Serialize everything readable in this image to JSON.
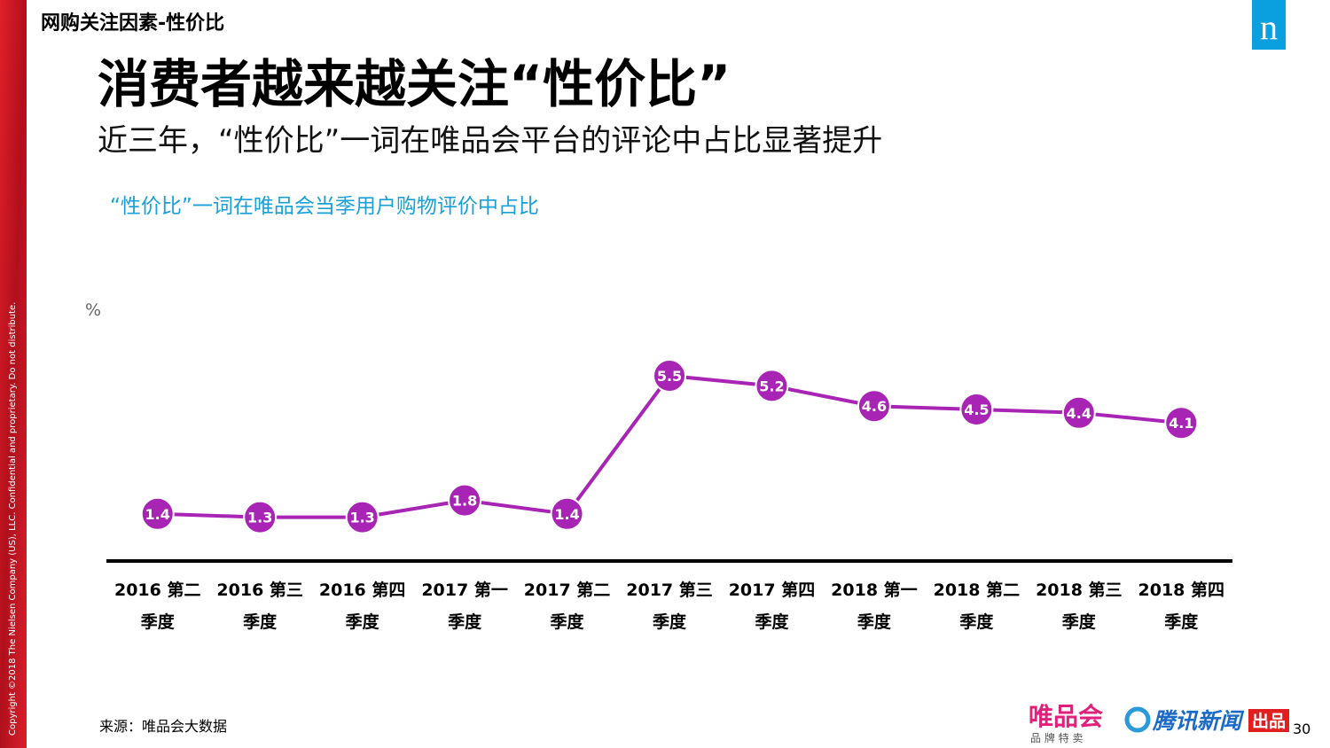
{
  "header": {
    "section": "网购关注因素-性价比",
    "title": "消费者越来越关注“性价比”",
    "subtitle": "近三年，“性价比”一词在唯品会平台的评论中占比显著提升",
    "logo": "n"
  },
  "chart_data": {
    "type": "line",
    "title": "“性价比”一词在唯品会当季用户购物评价中占比",
    "y_label": "%",
    "categories": [
      "2016 第二季度",
      "2016 第三季度",
      "2016 第四季度",
      "2017 第一季度",
      "2017 第二季度",
      "2017 第三季度",
      "2017 第四季度",
      "2018 第一季度",
      "2018 第二季度",
      "2018 第三季度",
      "2018 第四季度"
    ],
    "series": [
      {
        "name": "性价比",
        "color": "#a824b4",
        "values": [
          1.4,
          1.3,
          1.3,
          1.8,
          1.4,
          5.5,
          5.2,
          4.6,
          4.5,
          4.4,
          4.1
        ]
      }
    ],
    "ylim": [
      0,
      7.5
    ]
  },
  "footer": {
    "source": "来源：唯品会大数据",
    "page": "30",
    "copyright": "Copyright ©2018 The Nielsen Company (US), LLC. Confidential and proprietary. Do not distribute.",
    "brand1": "唯品会",
    "brand1_sub": "品 牌 特 卖",
    "brand2": "腾讯新闻",
    "brand2_tag": "出品"
  }
}
